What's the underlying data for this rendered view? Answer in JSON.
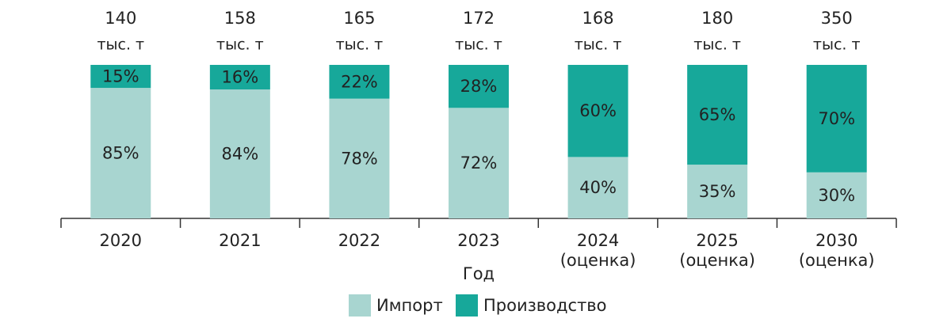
{
  "chart_data": {
    "type": "stacked_bar_100",
    "categories": [
      "2020",
      "2021",
      "2022",
      "2023",
      "2024\n(оценка)",
      "2025\n(оценка)",
      "2030\n(оценка)"
    ],
    "totals": [
      140,
      158,
      165,
      172,
      168,
      180,
      350
    ],
    "total_unit": "тыс. т",
    "series": [
      {
        "name": "Импорт",
        "color": "#a8d5d0",
        "values": [
          85,
          84,
          78,
          72,
          40,
          35,
          30
        ],
        "value_labels": [
          "85%",
          "84%",
          "78%",
          "72%",
          "40%",
          "35%",
          "30%"
        ]
      },
      {
        "name": "Производство",
        "color": "#17a89a",
        "values": [
          15,
          16,
          22,
          28,
          60,
          65,
          70
        ],
        "value_labels": [
          "15%",
          "16%",
          "22%",
          "28%",
          "60%",
          "65%",
          "70%"
        ]
      }
    ],
    "ylim": [
      0,
      100
    ],
    "xlabel": "Год",
    "legend": "bottom"
  }
}
